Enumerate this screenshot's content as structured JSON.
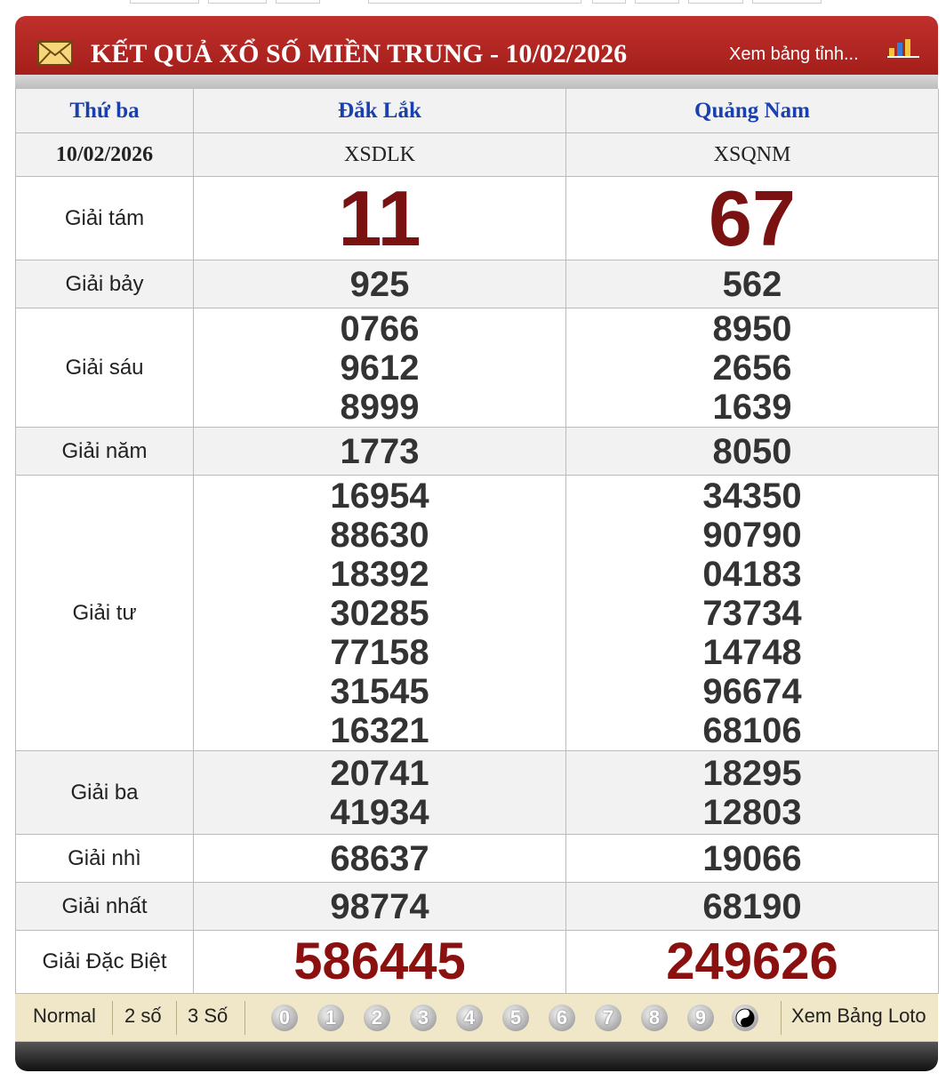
{
  "header": {
    "title": "KẾT QUẢ XỔ SỐ MIỀN TRUNG - 10/02/2026",
    "link": "Xem bảng tỉnh..."
  },
  "table": {
    "columns": [
      "Thứ ba",
      "Đắk Lắk",
      "Quảng Nam"
    ],
    "codes": [
      "10/02/2026",
      "XSDLK",
      "XSQNM"
    ],
    "rows": [
      {
        "label": "Giải tám",
        "values": [
          [
            "11"
          ],
          [
            "67"
          ]
        ]
      },
      {
        "label": "Giải bảy",
        "values": [
          [
            "925"
          ],
          [
            "562"
          ]
        ]
      },
      {
        "label": "Giải sáu",
        "values": [
          [
            "0766",
            "9612",
            "8999"
          ],
          [
            "8950",
            "2656",
            "1639"
          ]
        ]
      },
      {
        "label": "Giải năm",
        "values": [
          [
            "1773"
          ],
          [
            "8050"
          ]
        ]
      },
      {
        "label": "Giải tư",
        "values": [
          [
            "16954",
            "88630",
            "18392",
            "30285",
            "77158",
            "31545",
            "16321"
          ],
          [
            "34350",
            "90790",
            "04183",
            "73734",
            "14748",
            "96674",
            "68106"
          ]
        ]
      },
      {
        "label": "Giải ba",
        "values": [
          [
            "20741",
            "41934"
          ],
          [
            "18295",
            "12803"
          ]
        ]
      },
      {
        "label": "Giải nhì",
        "values": [
          [
            "68637"
          ],
          [
            "19066"
          ]
        ]
      },
      {
        "label": "Giải nhất",
        "values": [
          [
            "98774"
          ],
          [
            "68190"
          ]
        ]
      },
      {
        "label": "Giải Đặc Biệt",
        "values": [
          [
            "586445"
          ],
          [
            "249626"
          ]
        ]
      }
    ]
  },
  "toolbar": {
    "modes": [
      "Normal",
      "2 số",
      "3 Số"
    ],
    "digits": [
      "0",
      "1",
      "2",
      "3",
      "4",
      "5",
      "6",
      "7",
      "8",
      "9"
    ],
    "link": "Xem Bảng Loto"
  }
}
